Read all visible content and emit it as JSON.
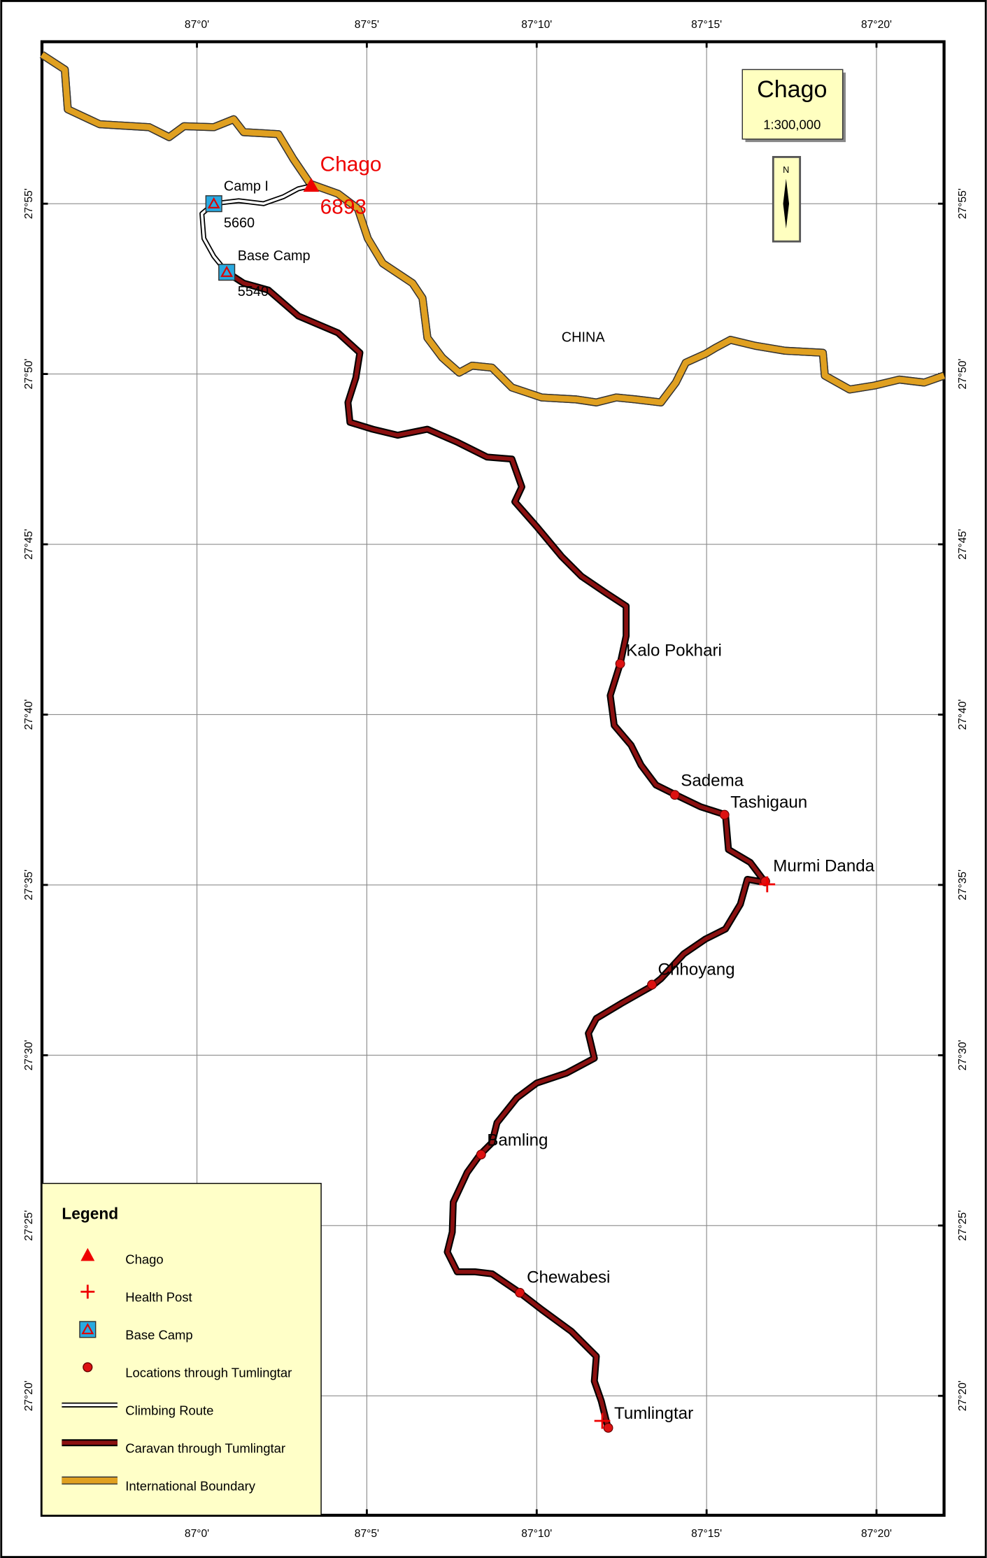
{
  "header": {
    "title": "Chago",
    "scale": "1:300,000",
    "north": "N"
  },
  "grid": {
    "longitudes": [
      "87°0'",
      "87°5'",
      "87°10'",
      "87°15'",
      "87°20'"
    ],
    "latitudes": [
      "27°55'",
      "27°50'",
      "27°45'",
      "27°40'",
      "27°35'",
      "27°30'",
      "27°25'",
      "27°20'"
    ]
  },
  "regions": {
    "country": "CHINA"
  },
  "peak": {
    "name": "Chago",
    "elevation": "6893"
  },
  "camps": [
    {
      "name": "Camp I",
      "elevation": "5660"
    },
    {
      "name": "Base Camp",
      "elevation": "5540"
    }
  ],
  "places": [
    "Kalo Pokhari",
    "Sadema",
    "Tashigaun",
    "Murmi Danda",
    "Chhoyang",
    "Bamling",
    "Chewabesi",
    "Tumlingtar"
  ],
  "legend": {
    "title": "Legend",
    "items": [
      "Chago",
      "Health Post",
      "Base Camp",
      "Locations through Tumlingtar",
      "Climbing Route",
      "Caravan through Tumlingtar",
      "International Boundary"
    ]
  }
}
